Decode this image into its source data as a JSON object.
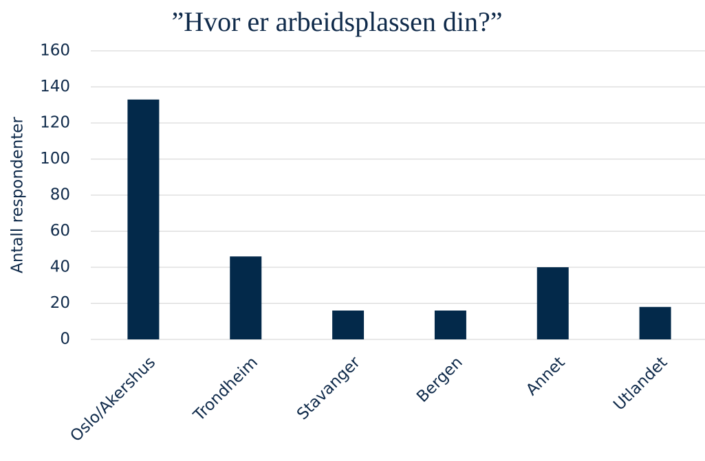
{
  "chart_data": {
    "type": "bar",
    "title": "”Hvor er arbeidsplassen din?”",
    "y_label": "Antall respondenter",
    "categories": [
      "Oslo/Akershus",
      "Trondheim",
      "Stavanger",
      "Bergen",
      "Annet",
      "Utlandet"
    ],
    "values": [
      133,
      46,
      16,
      16,
      40,
      18
    ],
    "color": "#03294a",
    "ylim": [
      0,
      160
    ],
    "yticks": [
      0,
      20,
      40,
      60,
      80,
      100,
      120,
      140,
      160
    ],
    "grid": true
  }
}
